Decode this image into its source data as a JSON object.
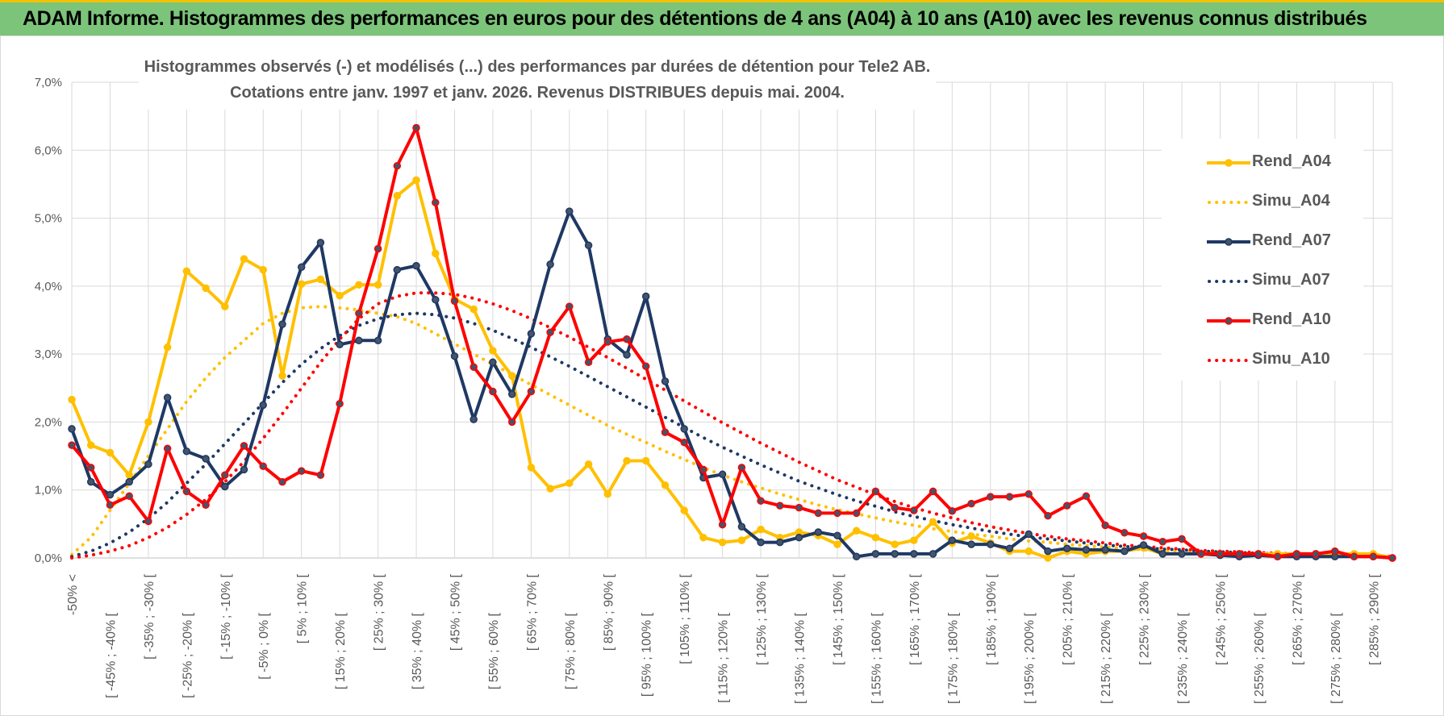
{
  "banner": {
    "title": "ADAM Informe. Histogrammes des performances en euros pour des détentions de 4 ans (A04) à 10 ans (A10) avec les revenus connus distribués"
  },
  "chart_data": {
    "type": "line",
    "title_line1": "Histogrammes observés (-) et modélisés (...) des performances par durées de détention pour Tele2 AB.",
    "title_line2": "Cotations entre janv. 1997 et janv. 2026. Revenus DISTRIBUES depuis mai. 2004.",
    "ylim": [
      0,
      7
    ],
    "y_ticks": [
      "0,0%",
      "1,0%",
      "2,0%",
      "3,0%",
      "4,0%",
      "5,0%",
      "6,0%",
      "7,0%"
    ],
    "x_tick_labels": [
      "-50% <",
      "[ -45% ; -40% [",
      "[ -35% ; -30% [",
      "[ -25% ; -20% [",
      "[ -15% ; -10% [",
      "[ -5% ; 0% [",
      "[ 5% ; 10% [",
      "[ 15% ; 20% [",
      "[ 25% ; 30% [",
      "[ 35% ; 40% [",
      "[ 45% ; 50% [",
      "[ 55% ; 60% [",
      "[ 65% ; 70% [",
      "[ 75% ; 80% [",
      "[ 85% ; 90% [",
      "[ 95% ; 100% [",
      "[ 105% ; 110% [",
      "[ 115% ; 120% [",
      "[ 125% ; 130% [",
      "[ 135% ; 140% [",
      "[ 145% ; 150% [",
      "[ 155% ; 160% [",
      "[ 165% ; 170% [",
      "[ 175% ; 180% [",
      "[ 185% ; 190% [",
      "[ 195% ; 200% [",
      "[ 205% ; 210% [",
      "[ 215% ; 220% [",
      "[ 225% ; 230% [",
      "[ 235% ; 240% [",
      "[ 245% ; 250% [",
      "[ 255% ; 260% [",
      "[ 265% ; 270% [",
      "[ 275% ; 280% [",
      "[ 285% ; 290% ["
    ],
    "n_points": 70,
    "grid": true,
    "legend_position": "right",
    "series": [
      {
        "name": "Rend_A04",
        "style": "solid",
        "color": "#FFC000",
        "values": [
          2.33,
          1.66,
          1.55,
          1.22,
          2.0,
          3.1,
          4.22,
          3.97,
          3.7,
          4.4,
          4.24,
          2.68,
          4.03,
          4.1,
          3.86,
          4.02,
          4.02,
          5.33,
          5.56,
          4.48,
          3.81,
          3.66,
          3.05,
          2.68,
          1.33,
          1.02,
          1.1,
          1.38,
          0.94,
          1.43,
          1.43,
          1.07,
          0.7,
          0.3,
          0.23,
          0.26,
          0.42,
          0.3,
          0.38,
          0.33,
          0.2,
          0.4,
          0.3,
          0.2,
          0.26,
          0.53,
          0.22,
          0.32,
          0.22,
          0.1,
          0.1,
          0.0,
          0.1,
          0.06,
          0.1,
          0.1,
          0.15,
          0.06,
          0.06,
          0.06,
          0.06,
          0.06,
          0.06,
          0.06,
          0.06,
          0.06,
          0.06,
          0.06,
          0.06,
          0.0
        ]
      },
      {
        "name": "Simu_A04",
        "style": "dotted",
        "color": "#FFC000",
        "values": [
          0.05,
          0.3,
          0.7,
          1.1,
          1.5,
          1.9,
          2.3,
          2.65,
          2.95,
          3.2,
          3.45,
          3.6,
          3.68,
          3.7,
          3.68,
          3.65,
          3.6,
          3.55,
          3.45,
          3.3,
          3.15,
          3.0,
          2.85,
          2.7,
          2.55,
          2.4,
          2.25,
          2.1,
          1.95,
          1.82,
          1.7,
          1.57,
          1.45,
          1.33,
          1.22,
          1.12,
          1.03,
          0.94,
          0.86,
          0.78,
          0.71,
          0.65,
          0.59,
          0.53,
          0.48,
          0.43,
          0.39,
          0.35,
          0.32,
          0.28,
          0.25,
          0.23,
          0.2,
          0.18,
          0.16,
          0.14,
          0.12,
          0.11,
          0.1,
          0.09,
          0.08,
          0.07,
          0.06,
          0.05,
          0.04,
          0.04,
          0.03,
          0.03,
          0.02,
          0.02
        ]
      },
      {
        "name": "Rend_A07",
        "style": "solid",
        "color": "#1F3864",
        "values": [
          1.9,
          1.12,
          0.93,
          1.12,
          1.38,
          2.36,
          1.57,
          1.46,
          1.05,
          1.3,
          2.25,
          3.44,
          4.28,
          4.64,
          3.14,
          3.2,
          3.2,
          4.24,
          4.3,
          3.8,
          2.97,
          2.04,
          2.88,
          2.41,
          3.3,
          4.32,
          5.1,
          4.6,
          3.22,
          2.99,
          3.85,
          2.6,
          1.9,
          1.18,
          1.23,
          0.46,
          0.23,
          0.23,
          0.3,
          0.38,
          0.33,
          0.02,
          0.06,
          0.06,
          0.06,
          0.06,
          0.26,
          0.2,
          0.2,
          0.14,
          0.35,
          0.1,
          0.14,
          0.12,
          0.12,
          0.1,
          0.19,
          0.06,
          0.06,
          0.06,
          0.04,
          0.02,
          0.04,
          0.02,
          0.02,
          0.02,
          0.02,
          0.02,
          0.02,
          0.0
        ]
      },
      {
        "name": "Simu_A07",
        "style": "dotted",
        "color": "#1F3864",
        "values": [
          0.02,
          0.1,
          0.22,
          0.38,
          0.58,
          0.82,
          1.1,
          1.38,
          1.68,
          1.98,
          2.28,
          2.58,
          2.85,
          3.08,
          3.27,
          3.42,
          3.52,
          3.58,
          3.6,
          3.58,
          3.53,
          3.45,
          3.35,
          3.23,
          3.1,
          2.96,
          2.82,
          2.67,
          2.52,
          2.37,
          2.22,
          2.07,
          1.92,
          1.77,
          1.63,
          1.5,
          1.37,
          1.25,
          1.13,
          1.03,
          0.93,
          0.84,
          0.76,
          0.68,
          0.61,
          0.55,
          0.49,
          0.44,
          0.39,
          0.35,
          0.31,
          0.28,
          0.25,
          0.22,
          0.19,
          0.17,
          0.15,
          0.13,
          0.12,
          0.1,
          0.09,
          0.08,
          0.07,
          0.06,
          0.05,
          0.05,
          0.04,
          0.03,
          0.03,
          0.02
        ]
      },
      {
        "name": "Rend_A10",
        "style": "solid",
        "color": "#FF0000",
        "values": [
          1.66,
          1.33,
          0.78,
          0.91,
          0.54,
          1.61,
          0.98,
          0.78,
          1.22,
          1.65,
          1.35,
          1.12,
          1.28,
          1.22,
          2.27,
          3.6,
          4.55,
          5.77,
          6.33,
          5.23,
          3.78,
          2.81,
          2.45,
          2.0,
          2.45,
          3.32,
          3.7,
          2.88,
          3.18,
          3.22,
          2.82,
          1.85,
          1.7,
          1.3,
          0.49,
          1.33,
          0.84,
          0.77,
          0.74,
          0.66,
          0.66,
          0.66,
          0.98,
          0.74,
          0.7,
          0.98,
          0.69,
          0.8,
          0.9,
          0.9,
          0.94,
          0.62,
          0.77,
          0.91,
          0.48,
          0.37,
          0.32,
          0.24,
          0.28,
          0.06,
          0.06,
          0.06,
          0.06,
          0.02,
          0.06,
          0.06,
          0.1,
          0.02,
          0.02,
          0.0
        ]
      },
      {
        "name": "Simu_A10",
        "style": "dotted",
        "color": "#FF0000",
        "values": [
          0.0,
          0.04,
          0.1,
          0.18,
          0.3,
          0.45,
          0.64,
          0.86,
          1.12,
          1.42,
          1.76,
          2.12,
          2.5,
          2.88,
          3.22,
          3.52,
          3.74,
          3.85,
          3.9,
          3.9,
          3.88,
          3.82,
          3.74,
          3.64,
          3.52,
          3.39,
          3.25,
          3.1,
          2.95,
          2.79,
          2.63,
          2.47,
          2.31,
          2.15,
          1.99,
          1.84,
          1.69,
          1.55,
          1.41,
          1.28,
          1.15,
          1.04,
          0.93,
          0.83,
          0.74,
          0.66,
          0.59,
          0.52,
          0.46,
          0.41,
          0.36,
          0.32,
          0.28,
          0.25,
          0.22,
          0.19,
          0.17,
          0.15,
          0.13,
          0.11,
          0.1,
          0.09,
          0.08,
          0.07,
          0.06,
          0.05,
          0.04,
          0.04,
          0.03,
          0.02
        ]
      }
    ]
  }
}
